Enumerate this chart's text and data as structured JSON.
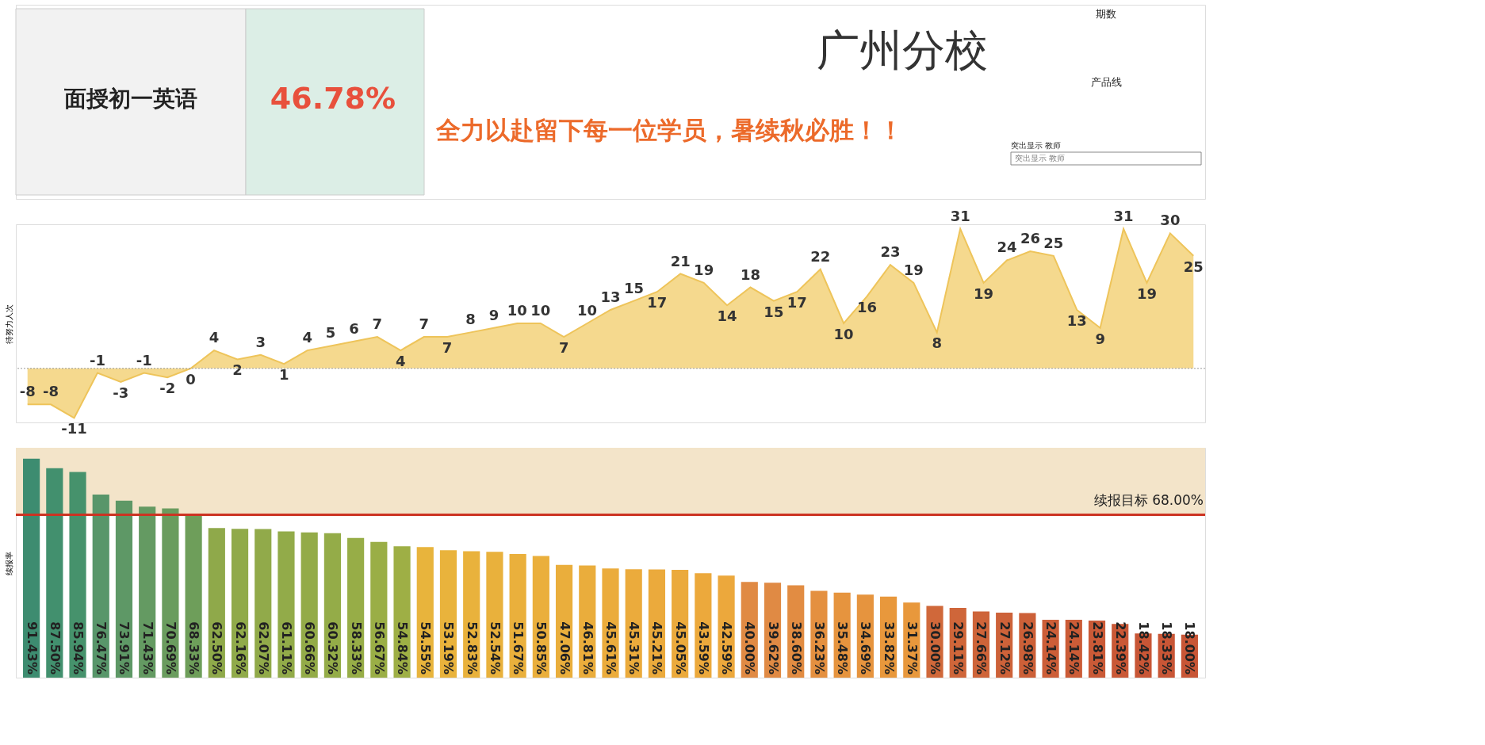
{
  "chart_data": [
    {
      "type": "other",
      "title": "广州分校",
      "subtitle": "全力以赴留下每一位学员，暑续秋必胜！！",
      "annotations": [
        "面授初一英语",
        "46.78%",
        "期数",
        "产品线",
        "突出显示 教师",
        "突出显示 教师"
      ]
    },
    {
      "type": "area",
      "ylabel": "待努力人次",
      "categories": [
        null,
        null,
        null,
        null,
        null,
        null,
        null,
        null,
        null,
        null,
        null,
        null,
        null,
        null,
        null,
        null,
        null,
        null,
        null,
        null,
        null,
        null,
        null,
        null,
        null,
        null,
        null,
        null,
        null,
        null,
        null,
        null,
        null,
        null,
        null,
        null,
        null,
        null,
        null,
        null,
        null,
        null,
        null,
        null,
        null,
        null,
        null,
        null,
        null,
        null,
        null
      ],
      "series": [
        {
          "color": "#f5d98e",
          "values": [
            -8,
            -8,
            -11,
            -1,
            -3,
            -1,
            -2,
            0,
            4,
            2,
            3,
            1,
            4,
            5,
            6,
            7,
            4,
            7,
            7,
            8,
            9,
            10,
            10,
            7,
            10,
            13,
            15,
            17,
            21,
            19,
            14,
            18,
            15,
            17,
            22,
            10,
            16,
            23,
            19,
            8,
            31,
            19,
            24,
            26,
            25,
            13,
            9,
            31,
            19,
            30,
            25
          ]
        }
      ],
      "ylim": [
        -12,
        32
      ],
      "data_labels": true,
      "ref_lines": [
        {
          "axis": "y",
          "value": 0,
          "color": "#999999",
          "line_style": "dotted"
        }
      ],
      "tick_labels": false,
      "grid": false,
      "legend": false
    },
    {
      "type": "bar",
      "ylabel": "续报率",
      "categories": [
        null,
        null,
        null,
        null,
        null,
        null,
        null,
        null,
        null,
        null,
        null,
        null,
        null,
        null,
        null,
        null,
        null,
        null,
        null,
        null,
        null,
        null,
        null,
        null,
        null,
        null,
        null,
        null,
        null,
        null,
        null,
        null,
        null,
        null,
        null,
        null,
        null,
        null,
        null,
        null,
        null,
        null,
        null,
        null,
        null,
        null,
        null,
        null,
        null,
        null,
        null
      ],
      "values": [
        91.43,
        87.5,
        85.94,
        76.47,
        73.91,
        71.43,
        70.69,
        68.33,
        62.5,
        62.16,
        62.07,
        61.11,
        60.66,
        60.32,
        58.33,
        56.67,
        54.84,
        54.55,
        53.19,
        52.83,
        52.54,
        51.67,
        50.85,
        47.06,
        46.81,
        45.61,
        45.31,
        45.21,
        45.05,
        43.59,
        42.59,
        40.0,
        39.62,
        38.6,
        36.23,
        35.48,
        34.69,
        33.82,
        31.37,
        30.0,
        29.11,
        27.66,
        27.12,
        26.98,
        24.14,
        24.14,
        23.81,
        22.39,
        18.42,
        18.33,
        18.0
      ],
      "value_labels": [
        "91.43%",
        "87.50%",
        "85.94%",
        "76.47%",
        "73.91%",
        "71.43%",
        "70.69%",
        "68.33%",
        "62.50%",
        "62.16%",
        "62.07%",
        "61.11%",
        "60.66%",
        "60.32%",
        "58.33%",
        "56.67%",
        "54.84%",
        "54.55%",
        "53.19%",
        "52.83%",
        "52.54%",
        "51.67%",
        "50.85%",
        "47.06%",
        "46.81%",
        "45.61%",
        "45.31%",
        "45.21%",
        "45.05%",
        "43.59%",
        "42.59%",
        "40.00%",
        "39.62%",
        "38.60%",
        "36.23%",
        "35.48%",
        "34.69%",
        "33.82%",
        "31.37%",
        "30.00%",
        "29.11%",
        "27.66%",
        "27.12%",
        "26.98%",
        "24.14%",
        "24.14%",
        "23.81%",
        "22.39%",
        "18.42%",
        "18.33%",
        "18.00%"
      ],
      "colors": [
        "#3d8c70",
        "#42906e",
        "#46926c",
        "#58966a",
        "#5e9866",
        "#649a62",
        "#6a9c5e",
        "#6e9e5a",
        "#8fa94a",
        "#90aa4a",
        "#91aa4a",
        "#92ab49",
        "#93ab48",
        "#94ac48",
        "#97ad47",
        "#9aae46",
        "#9eaf45",
        "#e8b43c",
        "#e9b33c",
        "#e9b23c",
        "#e9b13c",
        "#eab03c",
        "#eaaf3c",
        "#eaae3c",
        "#eaad3c",
        "#ebac3c",
        "#ebab3c",
        "#ebaa3c",
        "#ebaa3c",
        "#eca93c",
        "#eca83c",
        "#e08a44",
        "#e08a44",
        "#e28c42",
        "#e49040",
        "#e6943e",
        "#e6943e",
        "#e8983c",
        "#e8983c",
        "#d0683a",
        "#cf663a",
        "#ce6439",
        "#cd6239",
        "#cc6038",
        "#cc5e38",
        "#cb5c37",
        "#ca5a37",
        "#c95836",
        "#c85636",
        "#c85636",
        "#c85636"
      ],
      "ylim": [
        0,
        96
      ],
      "tick_labels": false,
      "grid": false,
      "legend": false,
      "ref_lines": [
        {
          "axis": "y",
          "value": 68,
          "label": "续报目标  68.00%",
          "color": "#cc3322"
        }
      ],
      "bands": [
        {
          "axis": "y",
          "from": 68,
          "to": 96,
          "color": "#f3e4c9"
        }
      ]
    }
  ]
}
